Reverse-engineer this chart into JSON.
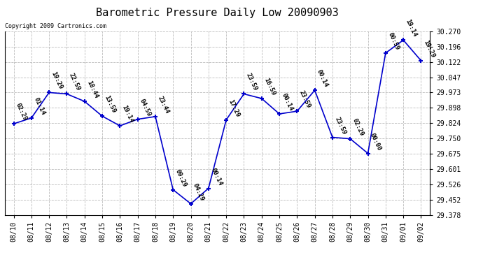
{
  "title": "Barometric Pressure Daily Low 20090903",
  "copyright": "Copyright 2009 Cartronics.com",
  "x_labels": [
    "08/10",
    "08/11",
    "08/12",
    "08/13",
    "08/14",
    "08/15",
    "08/16",
    "08/17",
    "08/18",
    "08/19",
    "08/20",
    "08/21",
    "08/22",
    "08/23",
    "08/24",
    "08/25",
    "08/26",
    "08/27",
    "08/28",
    "08/29",
    "08/30",
    "08/31",
    "09/01",
    "09/02"
  ],
  "y_values": [
    29.821,
    29.849,
    29.973,
    29.966,
    29.93,
    29.858,
    29.811,
    29.843,
    29.856,
    29.5,
    29.432,
    29.507,
    29.84,
    29.966,
    29.944,
    29.869,
    29.882,
    29.984,
    29.755,
    29.748,
    29.677,
    30.165,
    30.228,
    30.128
  ],
  "annotations": [
    "02:29",
    "01:14",
    "19:29",
    "22:59",
    "18:44",
    "13:59",
    "19:14",
    "04:59",
    "23:44",
    "09:29",
    "04:29",
    "00:14",
    "17:29",
    "23:59",
    "16:59",
    "00:14",
    "23:59",
    "00:14",
    "23:59",
    "02:29",
    "00:00",
    "00:59",
    "19:14",
    "19:29"
  ],
  "ylim": [
    29.378,
    30.27
  ],
  "y_ticks": [
    29.378,
    29.452,
    29.526,
    29.601,
    29.675,
    29.75,
    29.824,
    29.898,
    29.973,
    30.047,
    30.122,
    30.196,
    30.27
  ],
  "line_color": "#0000cc",
  "marker": "+",
  "marker_color": "#0000cc",
  "title_fontsize": 11,
  "label_fontsize": 7,
  "annot_fontsize": 6.5,
  "bg_color": "#ffffff",
  "grid_color": "#bbbbbb"
}
